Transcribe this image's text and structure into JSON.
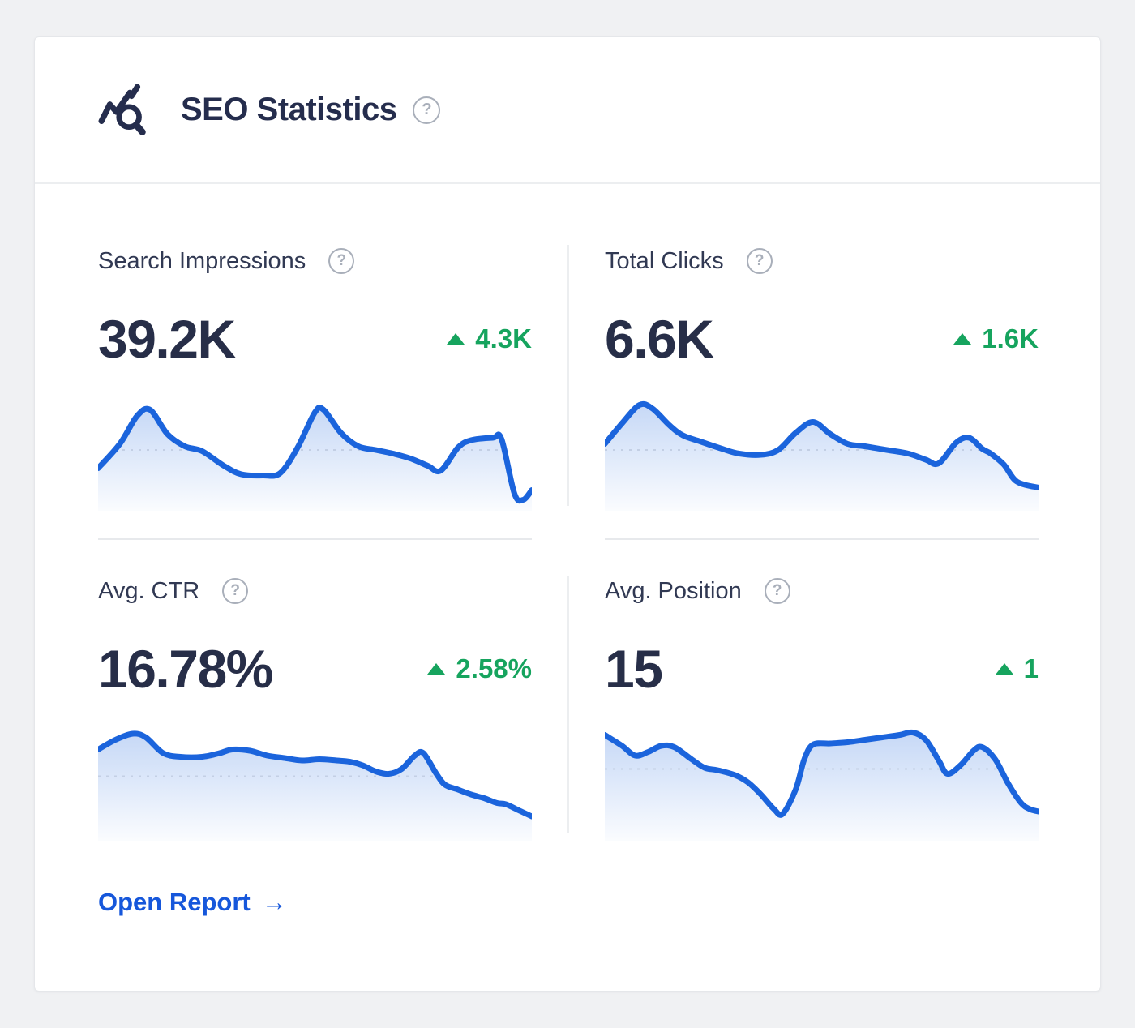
{
  "header": {
    "title": "SEO Statistics",
    "icon": "seo-trend-magnifier-icon",
    "help_glyph": "?"
  },
  "panels": [
    {
      "id": "search-impressions",
      "label": "Search Impressions",
      "value": "39.2K",
      "delta": "4.3K",
      "trend": "up",
      "help_glyph": "?"
    },
    {
      "id": "total-clicks",
      "label": "Total Clicks",
      "value": "6.6K",
      "delta": "1.6K",
      "trend": "up",
      "help_glyph": "?"
    },
    {
      "id": "avg-ctr",
      "label": "Avg. CTR",
      "value": "16.78%",
      "delta": "2.58%",
      "trend": "up",
      "help_glyph": "?"
    },
    {
      "id": "avg-position",
      "label": "Avg. Position",
      "value": "15",
      "delta": "1",
      "trend": "up",
      "help_glyph": "?"
    }
  ],
  "footer": {
    "open_report_label": "Open Report",
    "arrow": "→"
  },
  "colors": {
    "page_bg": "#f0f1f3",
    "card_bg": "#ffffff",
    "navy_text": "#272e48",
    "green_positive": "#16a45e",
    "link_blue": "#1657db",
    "chart_line": "#1b64dc",
    "reference_line": "#c3cfe4",
    "divider": "#e7e9ec",
    "help_gray": "#a9afba"
  },
  "chart_data": [
    {
      "metric": "Search Impressions",
      "type": "area",
      "title": "",
      "xlabel": "",
      "ylabel": "",
      "axes_shown": false,
      "grid": false,
      "legend": false,
      "current_value": "39.2K",
      "change": "+4.3K",
      "y_scale": "relative 0-100 (sparkline, no axis labels shown)",
      "reference_value": 50,
      "points": [
        [
          0,
          35
        ],
        [
          5,
          55
        ],
        [
          9,
          78
        ],
        [
          12,
          83
        ],
        [
          16,
          63
        ],
        [
          20,
          53
        ],
        [
          24,
          49
        ],
        [
          29,
          37
        ],
        [
          33,
          30
        ],
        [
          38,
          29
        ],
        [
          42,
          31
        ],
        [
          46,
          52
        ],
        [
          50,
          81
        ],
        [
          52,
          83
        ],
        [
          56,
          64
        ],
        [
          60,
          53
        ],
        [
          64,
          50
        ],
        [
          68,
          47
        ],
        [
          72,
          43
        ],
        [
          76,
          37
        ],
        [
          79,
          33
        ],
        [
          83,
          52
        ],
        [
          86,
          58
        ],
        [
          91,
          60
        ],
        [
          93,
          59
        ],
        [
          96,
          14
        ],
        [
          98,
          9
        ],
        [
          100,
          17
        ]
      ]
    },
    {
      "metric": "Total Clicks",
      "type": "area",
      "title": "",
      "xlabel": "",
      "ylabel": "",
      "axes_shown": false,
      "grid": false,
      "legend": false,
      "current_value": "6.6K",
      "change": "+1.6K",
      "y_scale": "relative 0-100 (sparkline, no axis labels shown)",
      "reference_value": 50,
      "points": [
        [
          0,
          55
        ],
        [
          4,
          72
        ],
        [
          8,
          87
        ],
        [
          11,
          84
        ],
        [
          15,
          70
        ],
        [
          18,
          62
        ],
        [
          22,
          57
        ],
        [
          27,
          51
        ],
        [
          31,
          47
        ],
        [
          36,
          46
        ],
        [
          40,
          50
        ],
        [
          44,
          64
        ],
        [
          48,
          73
        ],
        [
          52,
          63
        ],
        [
          56,
          55
        ],
        [
          60,
          53
        ],
        [
          65,
          50
        ],
        [
          70,
          47
        ],
        [
          74,
          42
        ],
        [
          77,
          39
        ],
        [
          81,
          56
        ],
        [
          84,
          60
        ],
        [
          87,
          51
        ],
        [
          89,
          47
        ],
        [
          92,
          38
        ],
        [
          95,
          24
        ],
        [
          100,
          19
        ]
      ]
    },
    {
      "metric": "Avg. CTR",
      "type": "area",
      "title": "",
      "xlabel": "",
      "ylabel": "",
      "axes_shown": false,
      "grid": false,
      "legend": false,
      "current_value": "16.78%",
      "change": "+2.58%",
      "y_scale": "relative 0-100 (sparkline, no axis labels shown)",
      "reference_value": 53,
      "points": [
        [
          0,
          75
        ],
        [
          4,
          83
        ],
        [
          8,
          88
        ],
        [
          11,
          85
        ],
        [
          15,
          72
        ],
        [
          19,
          69
        ],
        [
          24,
          69
        ],
        [
          28,
          72
        ],
        [
          31,
          75
        ],
        [
          35,
          74
        ],
        [
          39,
          70
        ],
        [
          43,
          68
        ],
        [
          47,
          66
        ],
        [
          51,
          67
        ],
        [
          55,
          66
        ],
        [
          58,
          65
        ],
        [
          61,
          62
        ],
        [
          64,
          57
        ],
        [
          67,
          55
        ],
        [
          70,
          59
        ],
        [
          73,
          70
        ],
        [
          75,
          72
        ],
        [
          78,
          55
        ],
        [
          80,
          46
        ],
        [
          83,
          42
        ],
        [
          86,
          38
        ],
        [
          89,
          35
        ],
        [
          92,
          31
        ],
        [
          94,
          30
        ],
        [
          97,
          25
        ],
        [
          100,
          20
        ]
      ]
    },
    {
      "metric": "Avg. Position",
      "type": "area",
      "title": "",
      "xlabel": "",
      "ylabel": "",
      "axes_shown": false,
      "grid": false,
      "legend": false,
      "current_value": "15",
      "change": "+1",
      "y_scale": "relative 0-100 (sparkline, no axis labels shown)",
      "reference_value": 59,
      "points": [
        [
          0,
          87
        ],
        [
          4,
          78
        ],
        [
          7,
          70
        ],
        [
          10,
          73
        ],
        [
          13,
          78
        ],
        [
          16,
          77
        ],
        [
          20,
          67
        ],
        [
          23,
          60
        ],
        [
          26,
          58
        ],
        [
          30,
          54
        ],
        [
          33,
          48
        ],
        [
          36,
          38
        ],
        [
          39,
          26
        ],
        [
          41,
          22
        ],
        [
          44,
          42
        ],
        [
          46,
          67
        ],
        [
          48,
          79
        ],
        [
          52,
          80
        ],
        [
          56,
          81
        ],
        [
          60,
          83
        ],
        [
          64,
          85
        ],
        [
          68,
          87
        ],
        [
          71,
          89
        ],
        [
          74,
          83
        ],
        [
          77,
          66
        ],
        [
          79,
          55
        ],
        [
          82,
          62
        ],
        [
          85,
          74
        ],
        [
          87,
          77
        ],
        [
          90,
          67
        ],
        [
          93,
          47
        ],
        [
          96,
          31
        ],
        [
          98,
          26
        ],
        [
          100,
          24
        ]
      ]
    }
  ]
}
